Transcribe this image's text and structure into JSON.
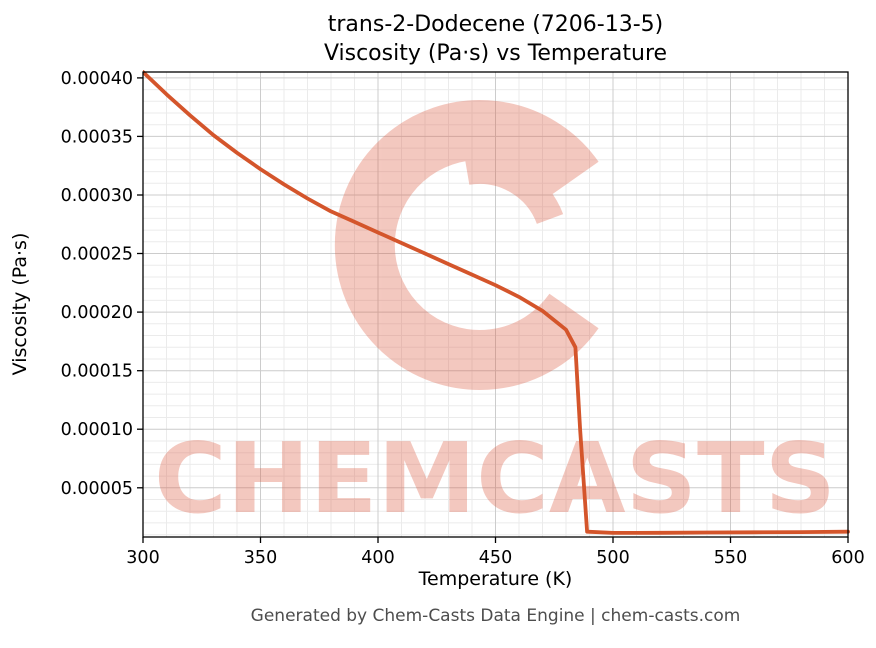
{
  "title": {
    "line1": "trans-2-Dodecene (7206-13-5)",
    "line2": "Viscosity (Pa·s) vs Temperature"
  },
  "footer": "Generated by Chem-Casts Data Engine | chem-casts.com",
  "watermark": {
    "text": "CHEMCASTS",
    "color": "#dd5a41"
  },
  "chart_data": {
    "type": "line",
    "title": "trans-2-Dodecene (7206-13-5) Viscosity (Pa·s) vs Temperature",
    "xlabel": "Temperature (K)",
    "ylabel": "Viscosity (Pa·s)",
    "xlim": [
      300,
      600
    ],
    "ylim": [
      8e-06,
      0.000405
    ],
    "x_ticks": [
      300,
      350,
      400,
      450,
      500,
      550,
      600
    ],
    "y_ticks": [
      5e-05,
      0.0001,
      0.00015,
      0.0002,
      0.00025,
      0.0003,
      0.00035,
      0.0004
    ],
    "x_minor_step": 10,
    "y_minor_step": 1e-05,
    "grid": "both",
    "legend": "none",
    "line_color": "#d4552b",
    "series": [
      {
        "name": "viscosity",
        "points": [
          [
            300,
            0.000405
          ],
          [
            310,
            0.000386
          ],
          [
            320,
            0.000368
          ],
          [
            330,
            0.000351
          ],
          [
            340,
            0.000336
          ],
          [
            350,
            0.000322
          ],
          [
            360,
            0.000309
          ],
          [
            370,
            0.000297
          ],
          [
            380,
            0.000286
          ],
          [
            390,
            0.000277
          ],
          [
            400,
            0.000268
          ],
          [
            410,
            0.000259
          ],
          [
            420,
            0.00025
          ],
          [
            430,
            0.000241
          ],
          [
            440,
            0.000232
          ],
          [
            450,
            0.000223
          ],
          [
            460,
            0.000213
          ],
          [
            470,
            0.000201
          ],
          [
            480,
            0.000185
          ],
          [
            484,
            0.00017
          ],
          [
            486,
            0.0001
          ],
          [
            489,
            1.25e-05
          ],
          [
            500,
            1.15e-05
          ],
          [
            520,
            1.16e-05
          ],
          [
            540,
            1.18e-05
          ],
          [
            560,
            1.2e-05
          ],
          [
            580,
            1.22e-05
          ],
          [
            600,
            1.25e-05
          ]
        ]
      }
    ]
  }
}
